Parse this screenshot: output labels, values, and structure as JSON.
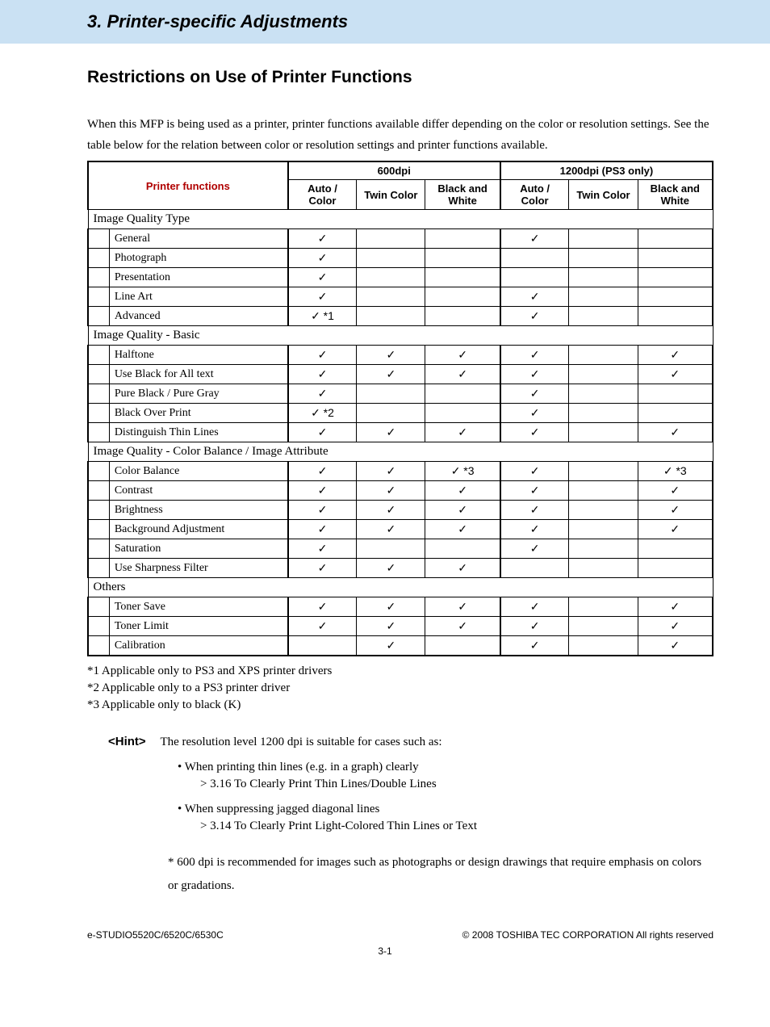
{
  "header": {
    "chapter": "3. Printer-specific Adjustments"
  },
  "section": {
    "title": "Restrictions on Use of Printer Functions"
  },
  "intro": "When this MFP is being used as a printer, printer functions available differ depending on the color or resolution settings. See the table below for the relation between color or resolution settings and printer functions available.",
  "table": {
    "type": "table",
    "header_text_color": "#b00000",
    "border_color": "#000000",
    "checkmark": "✓",
    "columns_label": "Printer functions",
    "groups": [
      {
        "title": "600dpi",
        "cols": [
          "Auto / Color",
          "Twin Color",
          "Black and White"
        ]
      },
      {
        "title": "1200dpi (PS3 only)",
        "cols": [
          "Auto / Color",
          "Twin Color",
          "Black and White"
        ]
      }
    ],
    "sections": [
      {
        "category": "Image Quality Type",
        "rows": [
          {
            "label": "General",
            "cells": [
              "✓",
              "",
              "",
              "✓",
              "",
              ""
            ]
          },
          {
            "label": "Photograph",
            "cells": [
              "✓",
              "",
              "",
              "",
              "",
              ""
            ]
          },
          {
            "label": "Presentation",
            "cells": [
              "✓",
              "",
              "",
              "",
              "",
              ""
            ]
          },
          {
            "label": "Line Art",
            "cells": [
              "✓",
              "",
              "",
              "✓",
              "",
              ""
            ]
          },
          {
            "label": "Advanced",
            "cells": [
              "✓ *1",
              "",
              "",
              "✓",
              "",
              ""
            ]
          }
        ]
      },
      {
        "category": "Image Quality - Basic",
        "rows": [
          {
            "label": "Halftone",
            "cells": [
              "✓",
              "✓",
              "✓",
              "✓",
              "",
              "✓"
            ]
          },
          {
            "label": "Use Black for All text",
            "cells": [
              "✓",
              "✓",
              "✓",
              "✓",
              "",
              "✓"
            ]
          },
          {
            "label": "Pure Black / Pure Gray",
            "cells": [
              "✓",
              "",
              "",
              "✓",
              "",
              ""
            ]
          },
          {
            "label": "Black Over Print",
            "cells": [
              "✓ *2",
              "",
              "",
              "✓",
              "",
              ""
            ]
          },
          {
            "label": "Distinguish Thin Lines",
            "cells": [
              "✓",
              "✓",
              "✓",
              "✓",
              "",
              "✓"
            ]
          }
        ]
      },
      {
        "category": "Image Quality - Color Balance / Image Attribute",
        "rows": [
          {
            "label": "Color Balance",
            "cells": [
              "✓",
              "✓",
              "✓ *3",
              "✓",
              "",
              "✓ *3"
            ]
          },
          {
            "label": "Contrast",
            "cells": [
              "✓",
              "✓",
              "✓",
              "✓",
              "",
              "✓"
            ]
          },
          {
            "label": "Brightness",
            "cells": [
              "✓",
              "✓",
              "✓",
              "✓",
              "",
              "✓"
            ]
          },
          {
            "label": "Background Adjustment",
            "cells": [
              "✓",
              "✓",
              "✓",
              "✓",
              "",
              "✓"
            ]
          },
          {
            "label": "Saturation",
            "cells": [
              "✓",
              "",
              "",
              "✓",
              "",
              ""
            ]
          },
          {
            "label": "Use Sharpness Filter",
            "cells": [
              "✓",
              "✓",
              "✓",
              "",
              "",
              ""
            ]
          }
        ]
      },
      {
        "category": "Others",
        "rows": [
          {
            "label": "Toner Save",
            "cells": [
              "✓",
              "✓",
              "✓",
              "✓",
              "",
              "✓"
            ]
          },
          {
            "label": "Toner Limit",
            "cells": [
              "✓",
              "✓",
              "✓",
              "✓",
              "",
              "✓"
            ]
          },
          {
            "label": "Calibration",
            "cells": [
              "",
              "✓",
              "",
              "✓",
              "",
              "✓"
            ]
          }
        ]
      }
    ]
  },
  "footnotes": [
    "*1  Applicable only to PS3 and XPS printer drivers",
    "*2  Applicable only to a PS3 printer driver",
    "*3  Applicable only to black (K)"
  ],
  "hint": {
    "label": "<Hint>",
    "intro": "The resolution level 1200 dpi is suitable for cases such as:",
    "bullets": [
      {
        "text": "•  When printing thin lines (e.g. in a graph) clearly",
        "sub": "> 3.16 To Clearly Print Thin Lines/Double Lines"
      },
      {
        "text": "•  When suppressing jagged diagonal lines",
        "sub": "> 3.14 To Clearly Print Light-Colored Thin Lines or Text"
      }
    ],
    "footer": "* 600 dpi is recommended for images such as photographs or design drawings that require emphasis on colors or gradations."
  },
  "page_footer": {
    "left": "e-STUDIO5520C/6520C/6530C",
    "right": "© 2008 TOSHIBA TEC CORPORATION All rights reserved",
    "pagenum": "3-1"
  },
  "styling": {
    "header_bg": "#cae1f3",
    "body_font": "Times New Roman",
    "header_font": "Arial",
    "header_fontsize_pt": 17,
    "section_title_fontsize_pt": 16,
    "table_fontsize_pt": 11,
    "col_widths_pct": [
      3.4,
      28.6,
      11,
      11,
      12,
      11,
      11,
      12
    ]
  }
}
